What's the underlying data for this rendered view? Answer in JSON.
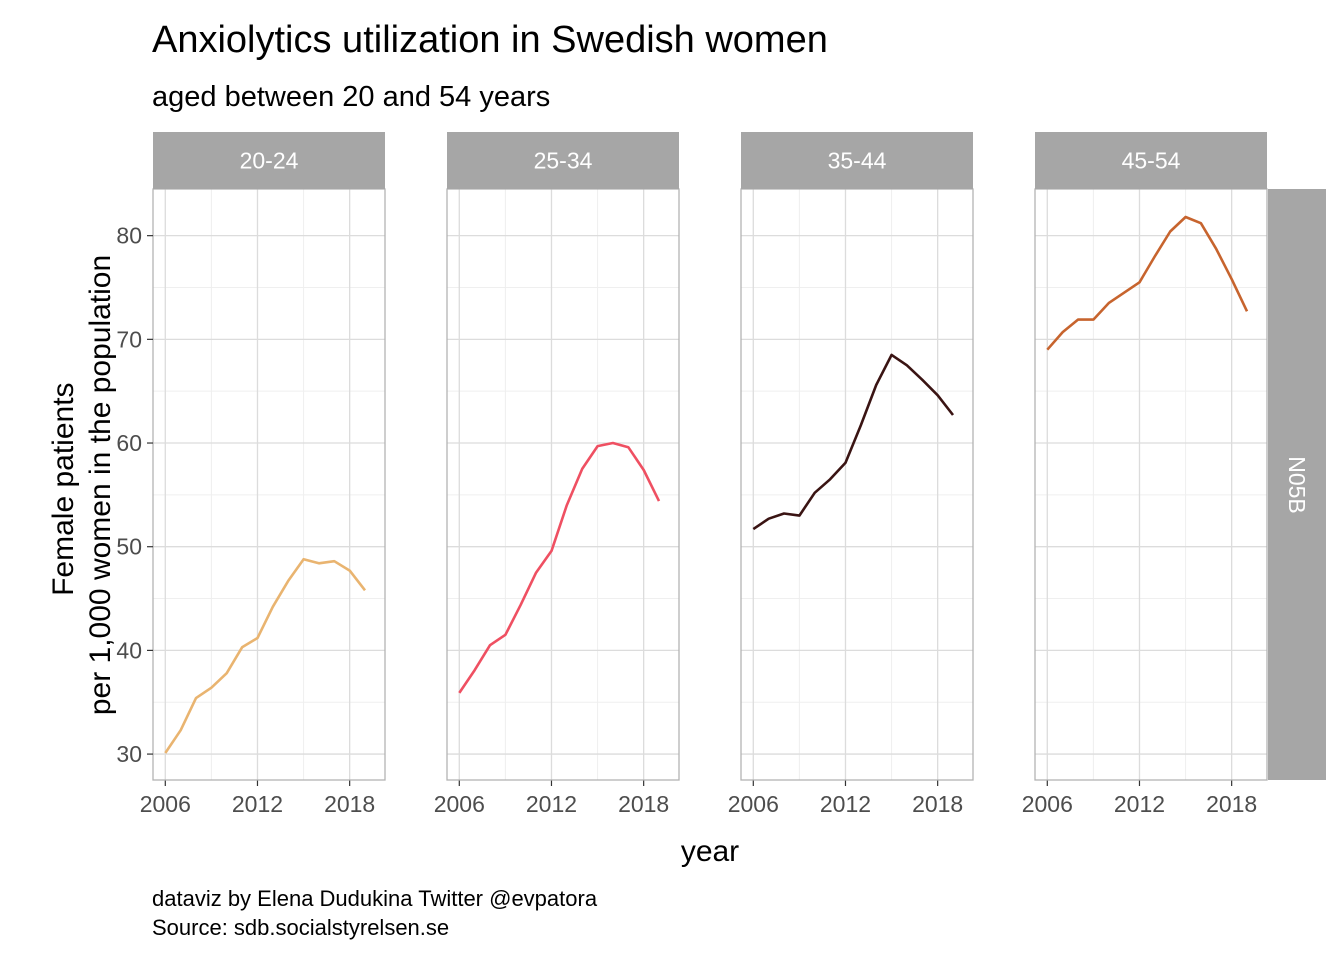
{
  "title": "Anxiolytics utilization in Swedish women",
  "subtitle": "aged between 20 and 54 years",
  "caption_lines": [
    "dataviz by Elena Dudukina Twitter @evpatora",
    "Source: sdb.socialstyrelsen.se"
  ],
  "chart_data": {
    "type": "line",
    "xlabel": "year",
    "ylabel_lines": [
      "Female patients",
      "per 1,000 women in the population"
    ],
    "xlim": [
      2005.2,
      2020.3
    ],
    "ylim": [
      27.5,
      84.5
    ],
    "x_ticks": [
      2006,
      2012,
      2018
    ],
    "y_ticks": [
      30,
      40,
      50,
      60,
      70,
      80
    ],
    "row_facet_label": "N05B",
    "colors": {
      "strip_background": "#a6a6a6",
      "panel_border": "#b3b3b3",
      "grid_major": "#dcdcdc",
      "grid_minor": "#efefef"
    },
    "x": [
      2006,
      2007,
      2008,
      2009,
      2010,
      2011,
      2012,
      2013,
      2014,
      2015,
      2016,
      2017,
      2018,
      2019
    ],
    "panels": [
      {
        "label": "20-24",
        "color": "#e9b470",
        "values": [
          30.1,
          32.3,
          35.4,
          36.4,
          37.8,
          40.3,
          41.2,
          44.2,
          46.7,
          48.8,
          48.4,
          48.6,
          47.7,
          45.8
        ]
      },
      {
        "label": "25-34",
        "color": "#ef5062",
        "values": [
          35.9,
          38.1,
          40.5,
          41.5,
          44.4,
          47.5,
          49.6,
          54.0,
          57.5,
          59.7,
          60.0,
          59.6,
          57.4,
          54.4
        ]
      },
      {
        "label": "35-44",
        "color": "#3a1413",
        "values": [
          51.7,
          52.7,
          53.2,
          53.0,
          55.2,
          56.5,
          58.1,
          61.7,
          65.6,
          68.5,
          67.5,
          66.1,
          64.6,
          62.7
        ]
      },
      {
        "label": "45-54",
        "color": "#c7642e",
        "values": [
          69.0,
          70.7,
          71.9,
          71.9,
          73.5,
          74.5,
          75.5,
          78.0,
          80.4,
          81.8,
          81.2,
          78.7,
          75.8,
          72.7
        ]
      }
    ]
  }
}
